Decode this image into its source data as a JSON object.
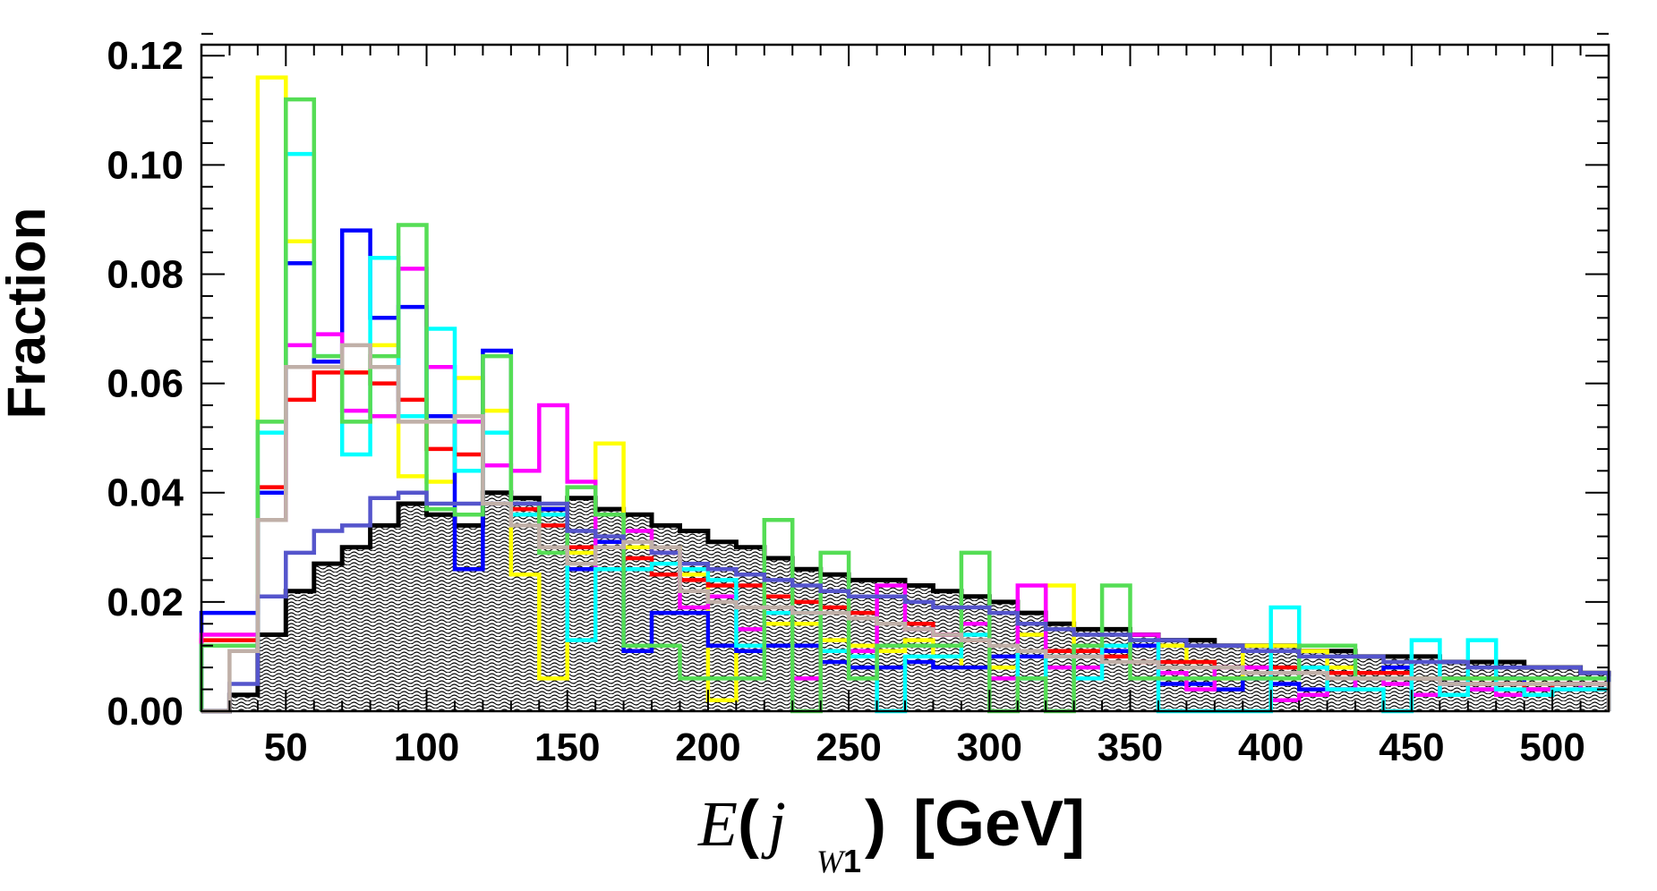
{
  "chart_data": {
    "type": "histogram",
    "title": "",
    "ylabel": "Fraction",
    "xlabel": {
      "E": "E",
      "open": "(",
      "j": "j",
      "sub_W": "W",
      "sub_1": "1",
      "close": ")",
      "unit": "[GeV]"
    },
    "xlim": [
      20,
      520
    ],
    "ylim": [
      0,
      0.122
    ],
    "x_ticks": [
      50,
      100,
      150,
      200,
      250,
      300,
      350,
      400,
      450,
      500
    ],
    "y_ticks": [
      "0.00",
      "0.02",
      "0.04",
      "0.06",
      "0.08",
      "0.10",
      "0.12"
    ],
    "bin_edges": [
      20,
      30,
      40,
      50,
      60,
      70,
      80,
      90,
      100,
      110,
      120,
      130,
      140,
      150,
      160,
      170,
      180,
      190,
      200,
      210,
      220,
      230,
      240,
      250,
      260,
      270,
      280,
      290,
      300,
      310,
      320,
      330,
      340,
      350,
      360,
      370,
      380,
      390,
      400,
      410,
      420,
      430,
      440,
      450,
      460,
      470,
      480,
      490,
      500,
      510,
      520
    ],
    "background": {
      "name": "background",
      "color": "#000000",
      "values": [
        0.0,
        0.003,
        0.014,
        0.022,
        0.027,
        0.03,
        0.034,
        0.038,
        0.036,
        0.034,
        0.04,
        0.039,
        0.037,
        0.039,
        0.037,
        0.036,
        0.034,
        0.033,
        0.031,
        0.03,
        0.028,
        0.026,
        0.025,
        0.024,
        0.024,
        0.023,
        0.022,
        0.021,
        0.02,
        0.018,
        0.016,
        0.015,
        0.015,
        0.014,
        0.013,
        0.013,
        0.012,
        0.012,
        0.012,
        0.011,
        0.011,
        0.01,
        0.01,
        0.01,
        0.009,
        0.009,
        0.009,
        0.008,
        0.008,
        0.007
      ]
    },
    "series": [
      {
        "color": "#ffff00",
        "values": [
          0.014,
          0.014,
          0.116,
          0.086,
          0.064,
          0.062,
          0.067,
          0.043,
          0.042,
          0.061,
          0.055,
          0.025,
          0.006,
          0.029,
          0.049,
          0.03,
          0.03,
          0.025,
          0.002,
          0.011,
          0.016,
          0.016,
          0.013,
          0.012,
          0.011,
          0.013,
          0.01,
          0.008,
          0.008,
          0.014,
          0.023,
          0.01,
          0.012,
          0.012,
          0.012,
          0.009,
          0.006,
          0.012,
          0.012,
          0.011,
          0.008,
          0.007,
          0.008,
          0.006,
          0.005,
          0.006,
          0.004,
          0.005,
          0.005,
          0.005
        ]
      },
      {
        "color": "#0000ff",
        "values": [
          0.018,
          0.018,
          0.04,
          0.082,
          0.064,
          0.088,
          0.072,
          0.074,
          0.054,
          0.026,
          0.066,
          0.038,
          0.037,
          0.026,
          0.031,
          0.011,
          0.018,
          0.018,
          0.012,
          0.011,
          0.012,
          0.012,
          0.009,
          0.008,
          0.008,
          0.009,
          0.008,
          0.008,
          0.01,
          0.01,
          0.011,
          0.01,
          0.011,
          0.012,
          0.005,
          0.005,
          0.004,
          0.006,
          0.005,
          0.004,
          0.004,
          0.007,
          0.008,
          0.006,
          0.005,
          0.004,
          0.006,
          0.004,
          0.005,
          0.004
        ]
      },
      {
        "color": "#ff0000",
        "values": [
          0.013,
          0.013,
          0.041,
          0.057,
          0.062,
          0.062,
          0.06,
          0.057,
          0.048,
          0.047,
          0.045,
          0.037,
          0.034,
          0.03,
          0.03,
          0.028,
          0.025,
          0.024,
          0.023,
          0.023,
          0.021,
          0.02,
          0.019,
          0.018,
          0.016,
          0.016,
          0.014,
          0.013,
          0.012,
          0.011,
          0.011,
          0.011,
          0.01,
          0.009,
          0.009,
          0.009,
          0.008,
          0.008,
          0.008,
          0.008,
          0.007,
          0.007,
          0.007,
          0.006,
          0.006,
          0.005,
          0.005,
          0.004,
          0.005,
          0.004
        ]
      },
      {
        "color": "#ff00ff",
        "values": [
          0.014,
          0.014,
          0.035,
          0.067,
          0.069,
          0.055,
          0.054,
          0.081,
          0.063,
          0.053,
          0.045,
          0.044,
          0.056,
          0.042,
          0.026,
          0.033,
          0.029,
          0.019,
          0.021,
          0.015,
          0.018,
          0.006,
          0.011,
          0.011,
          0.023,
          0.015,
          0.014,
          0.016,
          0.006,
          0.023,
          0.008,
          0.008,
          0.012,
          0.014,
          0.007,
          0.004,
          0.008,
          0.008,
          0.002,
          0.003,
          0.004,
          0.006,
          0.005,
          0.003,
          0.006,
          0.004,
          0.003,
          0.004,
          0.004,
          0.005
        ]
      },
      {
        "color": "#00ffff",
        "values": [
          0.012,
          0.012,
          0.051,
          0.102,
          0.065,
          0.047,
          0.083,
          0.054,
          0.07,
          0.044,
          0.051,
          0.036,
          0.036,
          0.013,
          0.026,
          0.026,
          0.027,
          0.026,
          0.024,
          0.012,
          0.018,
          0.018,
          0.011,
          0.01,
          0.0,
          0.01,
          0.01,
          0.014,
          0.012,
          0.006,
          0.01,
          0.006,
          0.012,
          0.013,
          0.0,
          0.0,
          0.0,
          0.0,
          0.019,
          0.008,
          0.004,
          0.004,
          0.0,
          0.013,
          0.003,
          0.013,
          0.004,
          0.003,
          0.004,
          0.004
        ]
      },
      {
        "color": "#55dd55",
        "values": [
          0.012,
          0.012,
          0.053,
          0.112,
          0.065,
          0.053,
          0.065,
          0.089,
          0.037,
          0.036,
          0.065,
          0.038,
          0.029,
          0.041,
          0.036,
          0.012,
          0.012,
          0.006,
          0.006,
          0.006,
          0.035,
          0.0,
          0.029,
          0.006,
          0.012,
          0.012,
          0.012,
          0.029,
          0.0,
          0.006,
          0.0,
          0.012,
          0.023,
          0.006,
          0.006,
          0.006,
          0.006,
          0.006,
          0.006,
          0.012,
          0.012,
          0.006,
          0.006,
          0.006,
          0.006,
          0.006,
          0.006,
          0.006,
          0.006,
          0.006
        ]
      },
      {
        "color": "#5555cc",
        "values": [
          0.0,
          0.005,
          0.021,
          0.029,
          0.033,
          0.034,
          0.039,
          0.04,
          0.038,
          0.038,
          0.038,
          0.038,
          0.038,
          0.033,
          0.032,
          0.031,
          0.029,
          0.027,
          0.026,
          0.025,
          0.024,
          0.023,
          0.022,
          0.021,
          0.021,
          0.02,
          0.019,
          0.019,
          0.018,
          0.016,
          0.015,
          0.014,
          0.014,
          0.013,
          0.013,
          0.012,
          0.012,
          0.011,
          0.011,
          0.01,
          0.01,
          0.01,
          0.009,
          0.009,
          0.009,
          0.008,
          0.008,
          0.008,
          0.008,
          0.007
        ]
      },
      {
        "color": "#c0b0a8",
        "values": [
          0.0,
          0.011,
          0.035,
          0.063,
          0.063,
          0.067,
          0.063,
          0.053,
          0.053,
          0.054,
          0.038,
          0.034,
          0.03,
          0.027,
          0.03,
          0.031,
          0.03,
          0.022,
          0.02,
          0.019,
          0.019,
          0.018,
          0.018,
          0.017,
          0.016,
          0.015,
          0.014,
          0.013,
          0.012,
          0.011,
          0.01,
          0.01,
          0.009,
          0.009,
          0.008,
          0.008,
          0.008,
          0.007,
          0.007,
          0.007,
          0.006,
          0.006,
          0.006,
          0.006,
          0.005,
          0.005,
          0.005,
          0.005,
          0.005,
          0.005
        ]
      }
    ]
  }
}
